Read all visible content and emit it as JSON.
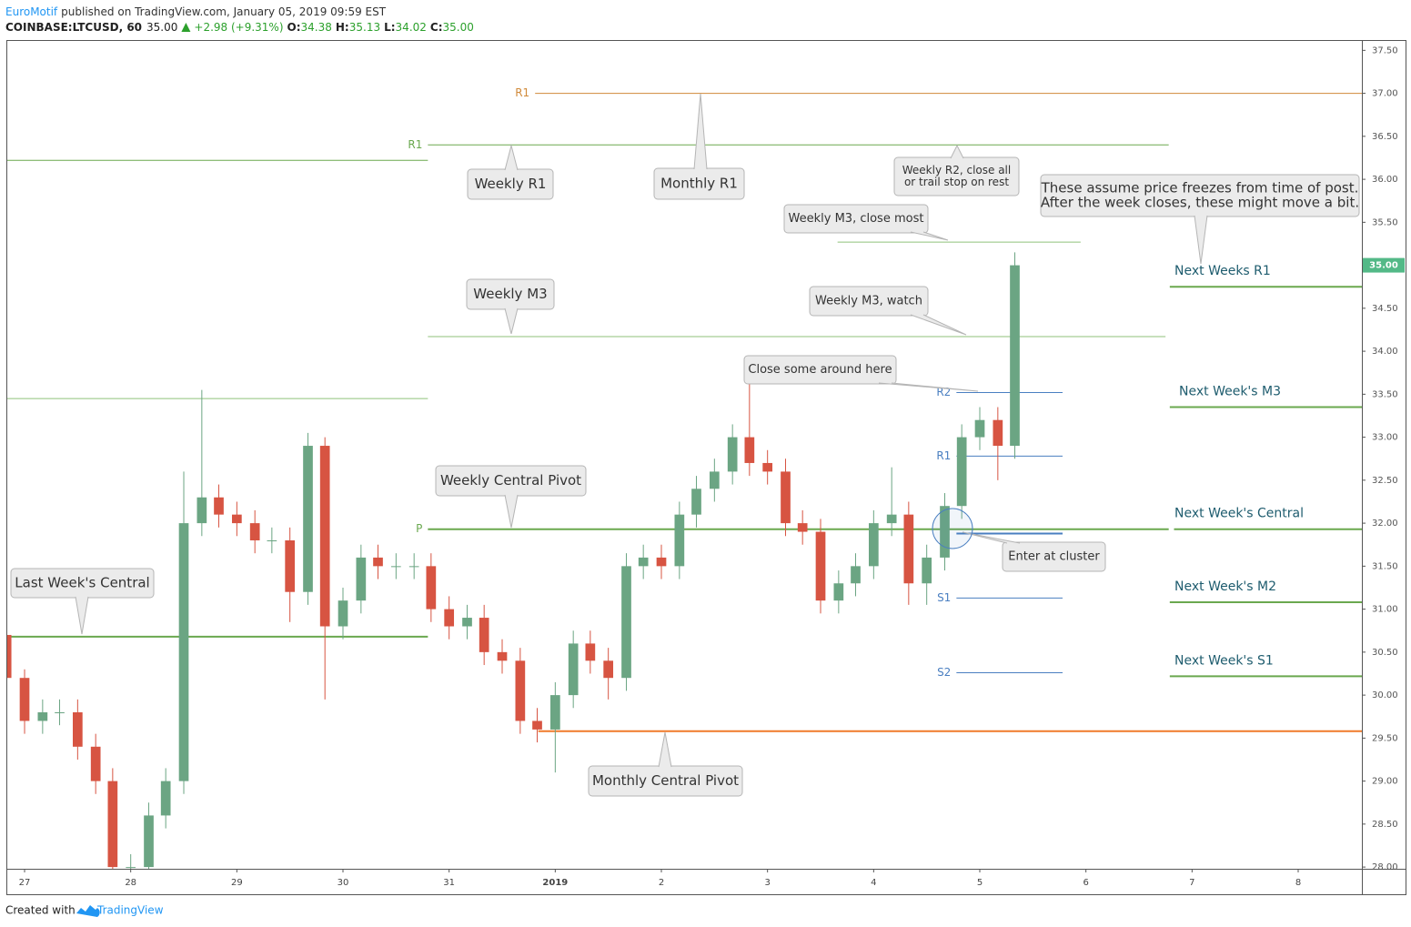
{
  "header": {
    "author": "EuroMotif",
    "published": "published on TradingView.com, January 05, 2019 09:59 EST",
    "symbol": "COINBASE:LTCUSD, 60",
    "last": "35.00",
    "change": "+2.98 (+9.31%)",
    "ohlc": [
      {
        "label": "O:",
        "value": "34.38"
      },
      {
        "label": "H:",
        "value": "35.13"
      },
      {
        "label": "L:",
        "value": "34.02"
      },
      {
        "label": "C:",
        "value": "35.00"
      }
    ]
  },
  "chart_data": {
    "type": "candlestick",
    "x": [
      -0.17,
      0,
      0.17,
      0.33,
      0.5,
      0.67,
      0.83,
      1,
      1.17,
      1.33,
      1.5,
      1.67,
      1.83,
      2,
      2.17,
      2.33,
      2.5,
      2.67,
      2.83,
      3,
      3.17,
      3.33,
      3.5,
      3.67,
      3.83,
      4,
      4.17,
      4.33,
      4.5,
      4.67,
      4.83,
      5,
      5.17,
      5.33,
      5.5,
      5.67,
      5.83,
      6,
      6.17,
      6.33,
      6.5,
      6.67,
      6.83,
      7,
      7.17,
      7.33,
      7.5,
      7.67,
      7.83,
      8,
      8.17,
      8.33,
      8.5,
      8.67,
      8.83,
      9,
      9.17,
      9.33
    ],
    "open": [
      30.7,
      30.2,
      29.7,
      29.8,
      29.8,
      29.4,
      29.0,
      28.0,
      28.0,
      28.6,
      29.0,
      32.0,
      32.3,
      32.1,
      32.0,
      31.8,
      31.8,
      31.2,
      32.9,
      30.8,
      31.1,
      31.6,
      31.5,
      31.5,
      31.5,
      31.0,
      30.8,
      30.9,
      30.5,
      30.4,
      29.7,
      29.6,
      30.0,
      30.6,
      30.4,
      30.2,
      31.5,
      31.6,
      31.5,
      32.1,
      32.4,
      32.6,
      33.0,
      32.7,
      32.6,
      32.0,
      31.9,
      31.1,
      31.3,
      31.5,
      32.0,
      32.1,
      31.3,
      31.6,
      32.2,
      33.0,
      33.2,
      32.9
    ],
    "high": [
      30.85,
      30.3,
      29.95,
      29.95,
      29.95,
      29.55,
      29.15,
      28.15,
      28.75,
      29.15,
      32.6,
      33.55,
      32.45,
      32.25,
      32.15,
      31.95,
      31.95,
      33.05,
      33.0,
      31.25,
      31.75,
      31.75,
      31.65,
      31.65,
      31.65,
      31.15,
      31.05,
      31.05,
      30.65,
      30.55,
      29.85,
      30.15,
      30.75,
      30.75,
      30.55,
      31.65,
      31.75,
      31.75,
      32.25,
      32.55,
      32.75,
      33.15,
      33.65,
      32.85,
      32.75,
      32.15,
      32.05,
      31.45,
      31.65,
      32.15,
      32.65,
      32.25,
      31.75,
      32.35,
      33.15,
      33.35,
      33.35,
      35.15
    ],
    "low": [
      30.05,
      29.55,
      29.55,
      29.65,
      29.25,
      28.85,
      27.85,
      27.85,
      27.85,
      28.45,
      28.85,
      31.85,
      31.95,
      31.85,
      31.65,
      31.65,
      30.85,
      31.05,
      29.95,
      30.65,
      30.95,
      31.35,
      31.35,
      31.35,
      30.85,
      30.65,
      30.65,
      30.35,
      30.25,
      29.55,
      29.45,
      29.1,
      29.85,
      30.25,
      29.95,
      30.05,
      31.35,
      31.35,
      31.35,
      31.95,
      32.25,
      32.45,
      32.55,
      32.45,
      31.85,
      31.75,
      30.95,
      30.95,
      31.15,
      31.35,
      31.85,
      31.05,
      31.05,
      31.45,
      32.05,
      32.85,
      32.5,
      32.75
    ],
    "close": [
      30.2,
      29.7,
      29.8,
      29.8,
      29.4,
      29.0,
      28.0,
      28.0,
      28.6,
      29.0,
      32.0,
      32.3,
      32.1,
      32.0,
      31.8,
      31.8,
      31.2,
      32.9,
      30.8,
      31.1,
      31.6,
      31.5,
      31.5,
      31.5,
      31.0,
      30.8,
      30.9,
      30.5,
      30.4,
      29.7,
      29.6,
      30.0,
      30.6,
      30.4,
      30.2,
      31.5,
      31.6,
      31.5,
      32.1,
      32.4,
      32.6,
      33.0,
      32.7,
      32.6,
      32.0,
      31.9,
      31.1,
      31.3,
      31.5,
      32.0,
      32.1,
      31.3,
      31.6,
      32.2,
      33.0,
      33.2,
      32.9,
      35.0
    ],
    "up_color": "#6ba583",
    "down_color": "#d75442",
    "xlim": [
      -0.163,
      12.6
    ],
    "xticks": [
      {
        "value": 0,
        "label": "27"
      },
      {
        "value": 1,
        "label": "28"
      },
      {
        "value": 2,
        "label": "29"
      },
      {
        "value": 3,
        "label": "30"
      },
      {
        "value": 4,
        "label": "31"
      },
      {
        "value": 5,
        "label": "2019"
      },
      {
        "value": 6,
        "label": "2"
      },
      {
        "value": 7,
        "label": "3"
      },
      {
        "value": 8,
        "label": "4"
      },
      {
        "value": 9,
        "label": "5"
      },
      {
        "value": 10,
        "label": "6"
      },
      {
        "value": 11,
        "label": "7"
      },
      {
        "value": 12,
        "label": "8"
      }
    ],
    "ylim": [
      27.98,
      37.62
    ],
    "yticks": [
      {
        "value": 28,
        "label": "28.00"
      },
      {
        "value": 28.5,
        "label": "28.50"
      },
      {
        "value": 29,
        "label": "29.00"
      },
      {
        "value": 29.5,
        "label": "29.50"
      },
      {
        "value": 30,
        "label": "30.00"
      },
      {
        "value": 30.5,
        "label": "30.50"
      },
      {
        "value": 31,
        "label": "31.00"
      },
      {
        "value": 31.5,
        "label": "31.50"
      },
      {
        "value": 32,
        "label": "32.00"
      },
      {
        "value": 32.5,
        "label": "32.50"
      },
      {
        "value": 33,
        "label": "33.00"
      },
      {
        "value": 33.5,
        "label": "33.50"
      },
      {
        "value": 34,
        "label": "34.00"
      },
      {
        "value": 34.5,
        "label": "34.50"
      },
      {
        "value": 35,
        "label": "35.00"
      },
      {
        "value": 35.5,
        "label": "35.50"
      },
      {
        "value": 36,
        "label": "36.00"
      },
      {
        "value": 36.5,
        "label": "36.50"
      },
      {
        "value": 37,
        "label": "37.00"
      },
      {
        "value": 37.5,
        "label": "37.50"
      }
    ],
    "last_price": {
      "value": 35,
      "label": "35.00",
      "color": "#53b987"
    },
    "levels": [
      {
        "label": "R1",
        "price": 37.0,
        "from": 4.81,
        "to": 12.6,
        "color": "#d08a3a",
        "width": 1
      },
      {
        "label": "R1",
        "price": 36.4,
        "from": 3.8,
        "to": 10.78,
        "color": "#6aa84f",
        "width": 1
      },
      {
        "price": 36.22,
        "from": -0.163,
        "to": 3.8,
        "color": "#6aa84f",
        "width": 1
      },
      {
        "price": 33.45,
        "from": -0.163,
        "to": 3.8,
        "color": "#8fc27a",
        "width": 1
      },
      {
        "price": 34.17,
        "from": 3.8,
        "to": 10.75,
        "color": "#8fc27a",
        "width": 1
      },
      {
        "price": 35.27,
        "from": 7.66,
        "to": 9.95,
        "color": "#8fc27a",
        "width": 1
      },
      {
        "label": "P",
        "price": 31.93,
        "from": 3.8,
        "to": 10.78,
        "color": "#6aa84f",
        "width": 2
      },
      {
        "price": 30.68,
        "from": -0.163,
        "to": 3.8,
        "color": "#6aa84f",
        "width": 2
      },
      {
        "price": 29.58,
        "from": 4.84,
        "to": 12.6,
        "color": "#f07a2a",
        "width": 2
      },
      {
        "price": 34.75,
        "from": 10.79,
        "to": 12.6,
        "color": "#6aa84f",
        "width": 2
      },
      {
        "price": 33.35,
        "from": 10.79,
        "to": 12.6,
        "color": "#6aa84f",
        "width": 2
      },
      {
        "price": 31.93,
        "from": 10.83,
        "to": 12.6,
        "color": "#6aa84f",
        "width": 2
      },
      {
        "price": 31.08,
        "from": 10.79,
        "to": 12.6,
        "color": "#6aa84f",
        "width": 2
      },
      {
        "price": 30.22,
        "from": 10.79,
        "to": 12.6,
        "color": "#6aa84f",
        "width": 2
      },
      {
        "label": "R2",
        "price": 33.52,
        "from": 8.78,
        "to": 9.78,
        "color": "#4a7fc1",
        "width": 1
      },
      {
        "label": "R1",
        "price": 32.78,
        "from": 8.78,
        "to": 9.78,
        "color": "#4a7fc1",
        "width": 1
      },
      {
        "price": 31.88,
        "from": 8.78,
        "to": 9.78,
        "color": "#4a7fc1",
        "width": 2
      },
      {
        "label": "S1",
        "price": 31.13,
        "from": 8.78,
        "to": 9.78,
        "color": "#4a7fc1",
        "width": 1
      },
      {
        "label": "S2",
        "price": 30.26,
        "from": 8.78,
        "to": 9.78,
        "color": "#4a7fc1",
        "width": 1
      }
    ],
    "annotations": [
      {
        "lines": [
          "Weekly R1"
        ]
      },
      {
        "lines": [
          "Monthly R1"
        ]
      },
      {
        "lines": [
          "Weekly R2, close all",
          "or trail stop on rest"
        ]
      },
      {
        "lines": [
          "These assume price freezes from time of post.",
          "After the week closes, these might move a bit."
        ]
      },
      {
        "lines": [
          "Weekly M3, close most"
        ]
      },
      {
        "lines": [
          "Weekly M3"
        ]
      },
      {
        "lines": [
          "Weekly M3, watch"
        ]
      },
      {
        "lines": [
          "Close some around here"
        ]
      },
      {
        "lines": [
          "Weekly Central Pivot"
        ]
      },
      {
        "lines": [
          "Enter at cluster"
        ]
      },
      {
        "lines": [
          "Last Week's Central"
        ]
      },
      {
        "lines": [
          "Monthly Central Pivot"
        ]
      }
    ],
    "level_notes": [
      {
        "text": "Next Weeks R1",
        "price": 34.75
      },
      {
        "text": "Next Week's M3",
        "price": 33.35
      },
      {
        "text": "Next Week's Central",
        "price": 31.93
      },
      {
        "text": "Next Week's M2",
        "price": 31.08
      },
      {
        "text": "Next Week's S1",
        "price": 30.22
      }
    ]
  },
  "footer": {
    "created": "Created with",
    "brand": "TradingView"
  }
}
